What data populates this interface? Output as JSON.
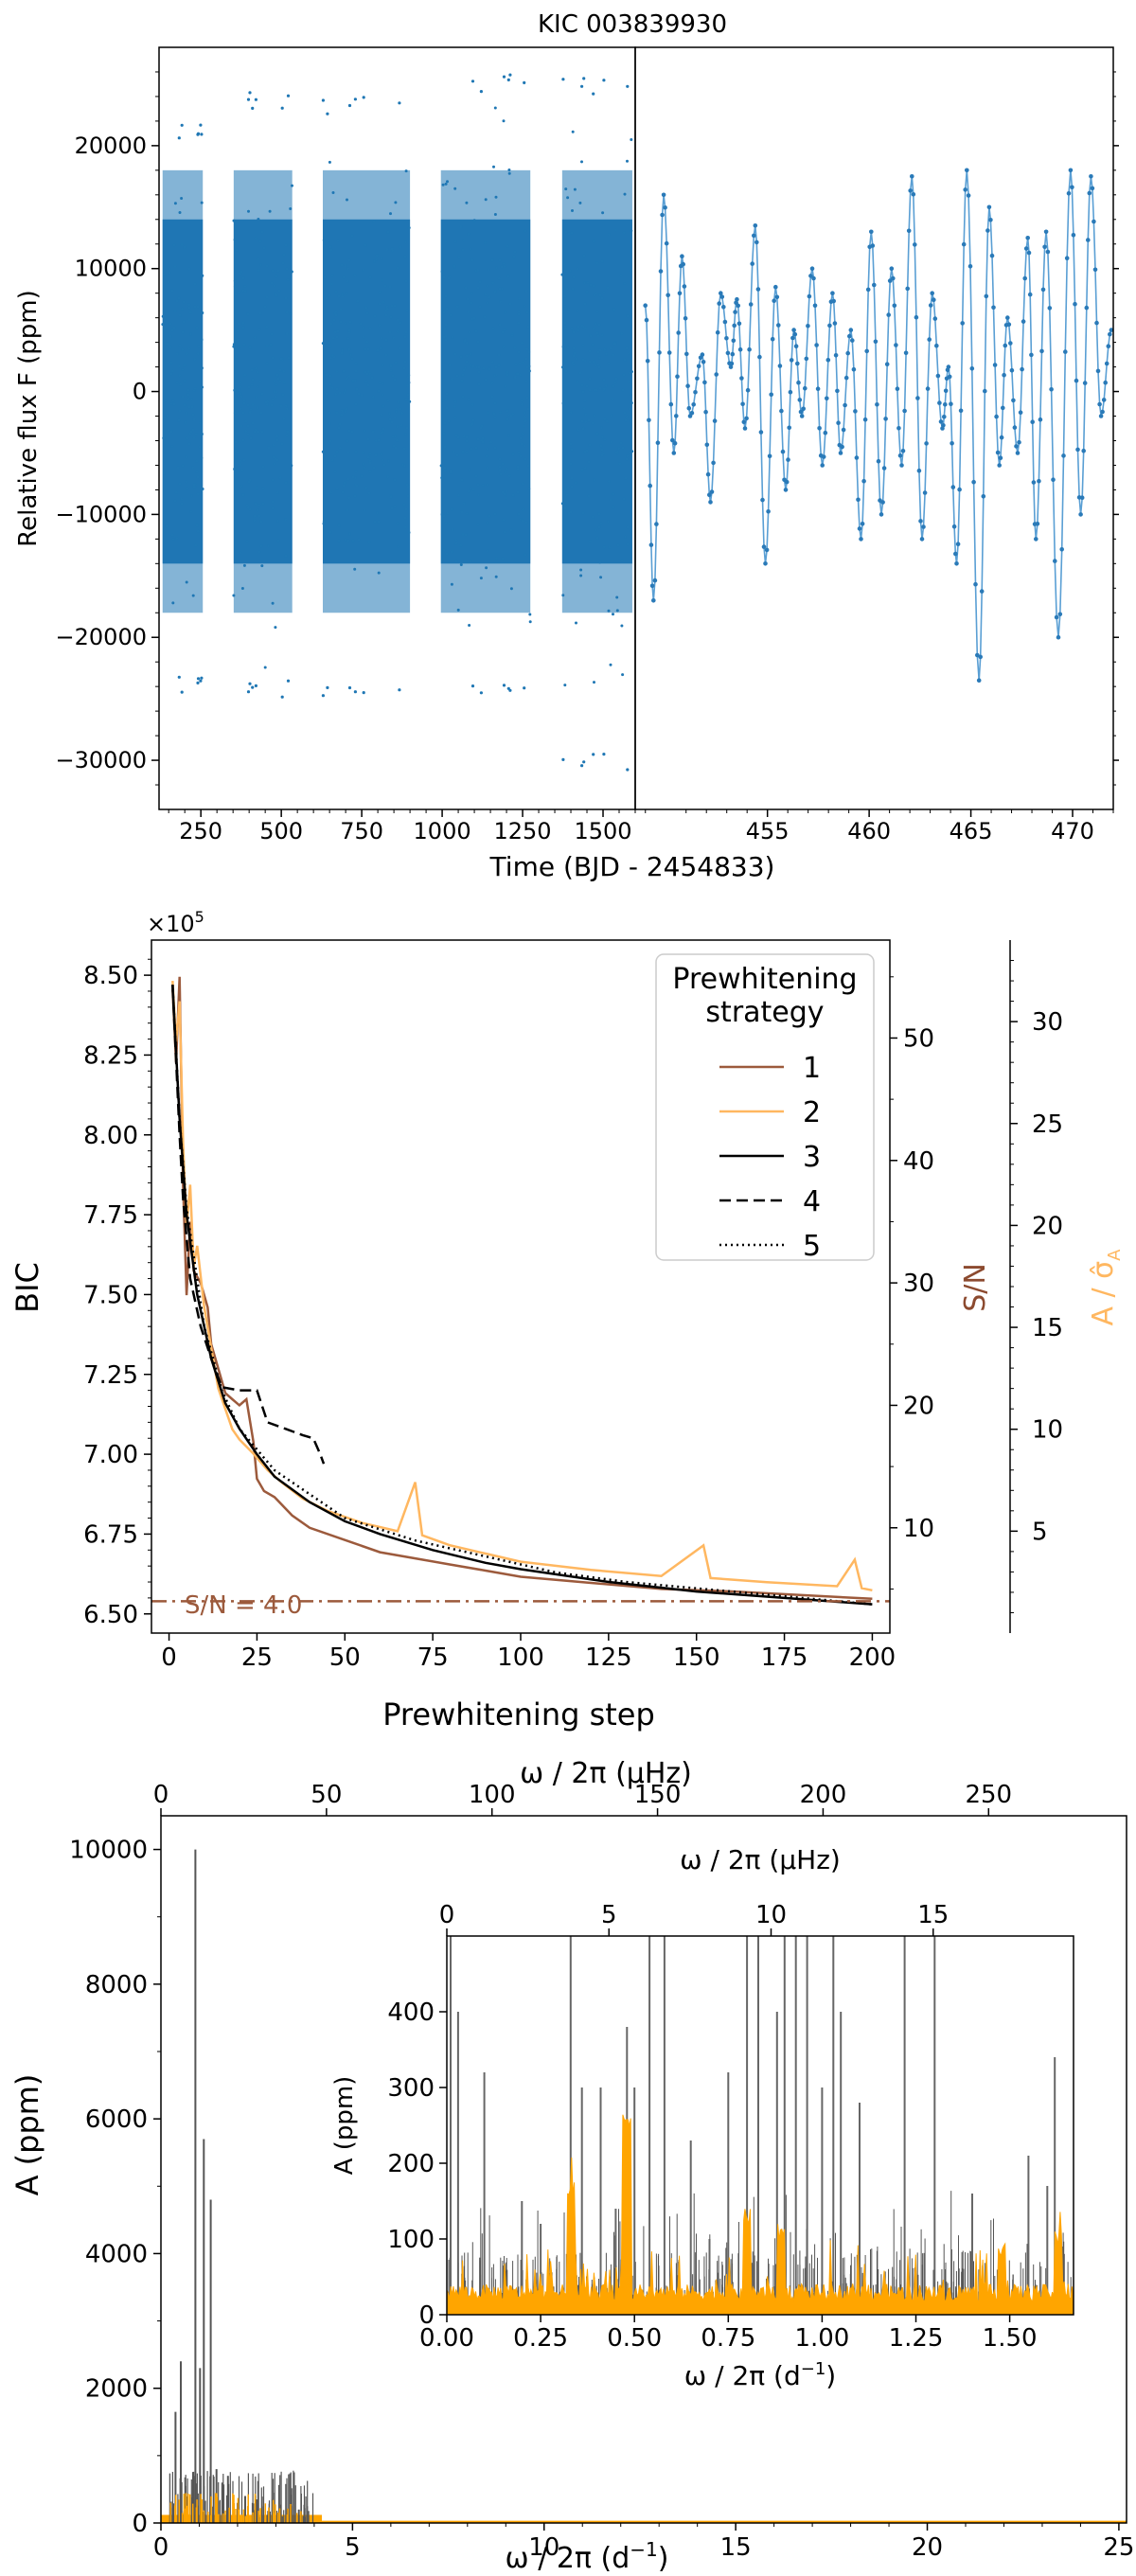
{
  "chart_data": [
    {
      "id": "lightcurve",
      "type": "scatter",
      "title": "KIC 003839930",
      "ylabel": "Relative flux F (ppm)",
      "xlabel": "Time (BJD - 2454833)",
      "left_panel": {
        "xlim": [
          120,
          1600
        ],
        "ylim": [
          -34000,
          28000
        ],
        "xticks": [
          250,
          500,
          750,
          1000,
          1250,
          1500
        ],
        "yticks": [
          -30000,
          -20000,
          -10000,
          0,
          10000,
          20000
        ],
        "ytick_labels": [
          "−30000",
          "−20000",
          "−10000",
          "0",
          "10000",
          "20000"
        ],
        "segments": [
          {
            "x0": 131,
            "x1": 256,
            "ymin": -24500,
            "ymax": 22000
          },
          {
            "x0": 352,
            "x1": 534,
            "ymin": -25000,
            "ymax": 24500
          },
          {
            "x0": 629,
            "x1": 900,
            "ymin": -25000,
            "ymax": 24000
          },
          {
            "x0": 996,
            "x1": 1274,
            "ymin": -25000,
            "ymax": 25800
          },
          {
            "x0": 1373,
            "x1": 1591,
            "ymin": -30800,
            "ymax": 25500
          }
        ]
      },
      "right_panel": {
        "xlim": [
          448.5,
          472
        ],
        "xticks": [
          455,
          460,
          465,
          470
        ],
        "extrema": [
          [
            449.0,
            7000
          ],
          [
            449.4,
            -17000
          ],
          [
            449.9,
            16000
          ],
          [
            450.4,
            -5000
          ],
          [
            450.8,
            11000
          ],
          [
            451.2,
            -2000
          ],
          [
            451.8,
            3000
          ],
          [
            452.2,
            -9000
          ],
          [
            452.7,
            8000
          ],
          [
            453.2,
            2000
          ],
          [
            453.5,
            7500
          ],
          [
            453.9,
            -3000
          ],
          [
            454.4,
            13500
          ],
          [
            454.9,
            -14000
          ],
          [
            455.4,
            8500
          ],
          [
            455.9,
            -8000
          ],
          [
            456.3,
            5000
          ],
          [
            456.7,
            -2000
          ],
          [
            457.2,
            10000
          ],
          [
            457.7,
            -6000
          ],
          [
            458.2,
            8000
          ],
          [
            458.6,
            -5000
          ],
          [
            459.1,
            5000
          ],
          [
            459.6,
            -12000
          ],
          [
            460.1,
            13000
          ],
          [
            460.6,
            -10000
          ],
          [
            461.1,
            10000
          ],
          [
            461.6,
            -6000
          ],
          [
            462.1,
            17500
          ],
          [
            462.6,
            -12000
          ],
          [
            463.1,
            8000
          ],
          [
            463.6,
            -3000
          ],
          [
            463.9,
            2000
          ],
          [
            464.3,
            -14000
          ],
          [
            464.8,
            18000
          ],
          [
            465.4,
            -23500
          ],
          [
            465.9,
            15000
          ],
          [
            466.4,
            -6000
          ],
          [
            466.8,
            6000
          ],
          [
            467.3,
            -5000
          ],
          [
            467.8,
            12500
          ],
          [
            468.2,
            -12000
          ],
          [
            468.7,
            13000
          ],
          [
            469.3,
            -20000
          ],
          [
            469.9,
            18000
          ],
          [
            470.4,
            -10000
          ],
          [
            470.9,
            17500
          ],
          [
            471.4,
            -2000
          ],
          [
            471.9,
            5000
          ]
        ]
      }
    },
    {
      "id": "bic",
      "type": "line",
      "xlabel": "Prewhitening step",
      "ylabel": "BIC",
      "y_multiplier": "×10",
      "y_multiplier_exp": "5",
      "xlim": [
        -5,
        205
      ],
      "ylim": [
        6.44,
        8.61
      ],
      "xticks": [
        0,
        25,
        50,
        75,
        100,
        125,
        150,
        175,
        200
      ],
      "yticks": [
        6.5,
        6.75,
        7.0,
        7.25,
        7.5,
        7.75,
        8.0,
        8.25,
        8.5
      ],
      "ytick_labels": [
        "6.50",
        "6.75",
        "7.00",
        "7.25",
        "7.50",
        "7.75",
        "8.00",
        "8.25",
        "8.50"
      ],
      "right_axis_1": {
        "label": "S/N",
        "color": "#8c4a2f",
        "ticks": [
          10,
          20,
          30,
          40,
          50
        ],
        "values_ylim": [
          1.4,
          58
        ]
      },
      "right_axis_2": {
        "label": "A / σ̂",
        "label_sub": "A",
        "color": "#ffb760",
        "ticks": [
          5,
          10,
          15,
          20,
          25,
          30
        ],
        "values_ylim": [
          0,
          34
        ]
      },
      "sn_threshold": {
        "value": 4.0,
        "label": "S/N = 4.0"
      },
      "legend": {
        "title_line1": "Prewhitening",
        "title_line2": "strategy",
        "placement": "top-right"
      },
      "series": [
        {
          "name": "1",
          "color": "#9c5a3c",
          "dash": "solid",
          "axis": "sn",
          "points": [
            [
              1,
              54
            ],
            [
              2,
              48
            ],
            [
              3,
              55
            ],
            [
              4,
              38
            ],
            [
              5,
              29
            ],
            [
              6,
              35
            ],
            [
              7,
              31
            ],
            [
              9,
              30
            ],
            [
              11,
              28
            ],
            [
              12,
              25
            ],
            [
              14,
              23
            ],
            [
              16,
              21
            ],
            [
              18,
              20.5
            ],
            [
              20,
              20
            ],
            [
              22,
              20.5
            ],
            [
              24,
              17
            ],
            [
              25,
              14
            ],
            [
              27,
              13
            ],
            [
              30,
              12.5
            ],
            [
              35,
              11
            ],
            [
              40,
              10
            ],
            [
              50,
              9
            ],
            [
              60,
              8
            ],
            [
              70,
              7.5
            ],
            [
              80,
              7
            ],
            [
              90,
              6.5
            ],
            [
              100,
              6
            ],
            [
              120,
              5.5
            ],
            [
              140,
              5
            ],
            [
              160,
              4.8
            ],
            [
              180,
              4.5
            ],
            [
              200,
              4.2
            ]
          ]
        },
        {
          "name": "2",
          "color": "#ffb760",
          "dash": "solid",
          "axis": "snr2",
          "points": [
            [
              1,
              32
            ],
            [
              2,
              29
            ],
            [
              3,
              31
            ],
            [
              4,
              24
            ],
            [
              5,
              20
            ],
            [
              6,
              22
            ],
            [
              7,
              18
            ],
            [
              8,
              19
            ],
            [
              10,
              16
            ],
            [
              12,
              14
            ],
            [
              14,
              12
            ],
            [
              16,
              11
            ],
            [
              18,
              10
            ],
            [
              20,
              9.5
            ],
            [
              24,
              8.8
            ],
            [
              28,
              8
            ],
            [
              32,
              7.4
            ],
            [
              38,
              6.6
            ],
            [
              45,
              6
            ],
            [
              55,
              5.4
            ],
            [
              65,
              5
            ],
            [
              70,
              7.4
            ],
            [
              72,
              4.8
            ],
            [
              80,
              4.3
            ],
            [
              90,
              3.9
            ],
            [
              100,
              3.5
            ],
            [
              120,
              3.1
            ],
            [
              140,
              2.8
            ],
            [
              152,
              4.3
            ],
            [
              154,
              2.7
            ],
            [
              170,
              2.5
            ],
            [
              190,
              2.3
            ],
            [
              195,
              3.6
            ],
            [
              197,
              2.2
            ],
            [
              200,
              2.1
            ]
          ]
        },
        {
          "name": "3",
          "color": "#000000",
          "dash": "solid",
          "axis": "bic",
          "points": [
            [
              1,
              8.47
            ],
            [
              3,
              8.05
            ],
            [
              5,
              7.75
            ],
            [
              8,
              7.5
            ],
            [
              12,
              7.3
            ],
            [
              16,
              7.16
            ],
            [
              20,
              7.08
            ],
            [
              25,
              7.0
            ],
            [
              30,
              6.93
            ],
            [
              40,
              6.85
            ],
            [
              50,
              6.79
            ],
            [
              60,
              6.75
            ],
            [
              75,
              6.7
            ],
            [
              90,
              6.66
            ],
            [
              100,
              6.64
            ],
            [
              125,
              6.6
            ],
            [
              150,
              6.57
            ],
            [
              175,
              6.55
            ],
            [
              200,
              6.53
            ]
          ]
        },
        {
          "name": "4",
          "color": "#000000",
          "dash": "dashed",
          "axis": "bic",
          "points": [
            [
              1,
              8.47
            ],
            [
              3,
              8.0
            ],
            [
              4,
              7.8
            ],
            [
              6,
              7.55
            ],
            [
              9,
              7.4
            ],
            [
              12,
              7.3
            ],
            [
              15,
              7.21
            ],
            [
              20,
              7.2
            ],
            [
              25,
              7.2
            ],
            [
              28,
              7.1
            ],
            [
              33,
              7.08
            ],
            [
              38,
              7.06
            ],
            [
              41,
              7.05
            ],
            [
              43,
              7.0
            ],
            [
              44,
              6.97
            ]
          ]
        },
        {
          "name": "5",
          "color": "#000000",
          "dash": "dotted",
          "axis": "bic",
          "points": [
            [
              1,
              8.47
            ],
            [
              3,
              8.05
            ],
            [
              5,
              7.77
            ],
            [
              10,
              7.4
            ],
            [
              15,
              7.2
            ],
            [
              20,
              7.08
            ],
            [
              30,
              6.95
            ],
            [
              50,
              6.8
            ],
            [
              70,
              6.73
            ],
            [
              90,
              6.68
            ],
            [
              110,
              6.63
            ],
            [
              130,
              6.6
            ],
            [
              160,
              6.57
            ],
            [
              200,
              6.53
            ]
          ]
        }
      ]
    },
    {
      "id": "periodogram",
      "type": "bar",
      "ylabel": "A (ppm)",
      "xlabel": "ω / 2π (d",
      "xlabel_sup": "−1",
      "top_label": "ω / 2π (μHz)",
      "xlim": [
        0,
        25.2
      ],
      "ylim": [
        0,
        10500
      ],
      "xticks": [
        0,
        5,
        10,
        15,
        20,
        25
      ],
      "yticks": [
        0,
        2000,
        4000,
        6000,
        8000,
        10000
      ],
      "top_ticks": [
        0,
        50,
        100,
        150,
        200,
        250
      ],
      "colors": {
        "observed": "#555555",
        "residual": "#ffa500"
      },
      "peaks": [
        [
          0.38,
          1650
        ],
        [
          0.52,
          2400
        ],
        [
          0.7,
          350
        ],
        [
          0.9,
          10000
        ],
        [
          1.02,
          2300
        ],
        [
          1.12,
          5700
        ],
        [
          1.3,
          4800
        ],
        [
          1.45,
          800
        ],
        [
          1.6,
          600
        ],
        [
          1.75,
          700
        ],
        [
          2.0,
          300
        ],
        [
          2.2,
          400
        ],
        [
          2.5,
          350
        ],
        [
          2.8,
          180
        ],
        [
          3.4,
          250
        ],
        [
          3.6,
          200
        ]
      ],
      "inset": {
        "xlim": [
          0,
          1.67
        ],
        "ylim": [
          0,
          500
        ],
        "xlabel": "ω / 2π (d",
        "xlabel_sup": "−1",
        "ylabel": "A (ppm)",
        "top_label": "ω / 2π (μHz)",
        "xticks": [
          0.0,
          0.25,
          0.5,
          0.75,
          1.0,
          1.25,
          1.5
        ],
        "xtick_labels": [
          "0.00",
          "0.25",
          "0.50",
          "0.75",
          "1.00",
          "1.25",
          "1.50"
        ],
        "yticks": [
          0,
          100,
          200,
          300,
          400
        ],
        "top_ticks": [
          0,
          5,
          10,
          15
        ],
        "peaks": [
          [
            0.01,
            500
          ],
          [
            0.03,
            400
          ],
          [
            0.1,
            320
          ],
          [
            0.2,
            150
          ],
          [
            0.25,
            120
          ],
          [
            0.33,
            500
          ],
          [
            0.36,
            300
          ],
          [
            0.41,
            300
          ],
          [
            0.45,
            140
          ],
          [
            0.48,
            380
          ],
          [
            0.5,
            300
          ],
          [
            0.54,
            500
          ],
          [
            0.58,
            500
          ],
          [
            0.65,
            230
          ],
          [
            0.7,
            100
          ],
          [
            0.75,
            320
          ],
          [
            0.8,
            500
          ],
          [
            0.83,
            500
          ],
          [
            0.88,
            400
          ],
          [
            0.9,
            500
          ],
          [
            0.93,
            500
          ],
          [
            0.96,
            500
          ],
          [
            1.0,
            300
          ],
          [
            1.03,
            500
          ],
          [
            1.05,
            400
          ],
          [
            1.1,
            280
          ],
          [
            1.22,
            500
          ],
          [
            1.3,
            500
          ],
          [
            1.4,
            160
          ],
          [
            1.55,
            210
          ],
          [
            1.6,
            170
          ],
          [
            1.62,
            340
          ],
          [
            1.64,
            90
          ]
        ]
      }
    }
  ]
}
